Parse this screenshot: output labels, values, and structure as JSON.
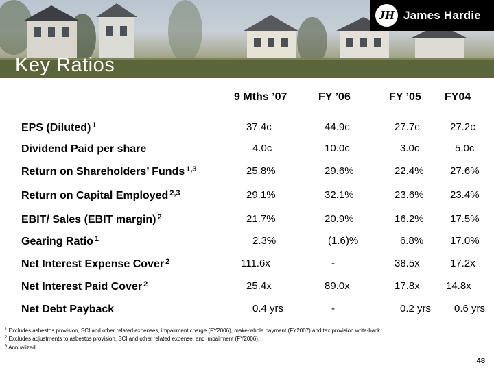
{
  "header": {
    "logo_mark": "JH",
    "logo_text": "James Hardie",
    "title": "Key Ratios"
  },
  "columns": [
    "9 Mths ’07",
    "FY ’06",
    "FY ’05",
    "FY04"
  ],
  "rows": [
    {
      "label": "EPS (Diluted)",
      "sup": "1",
      "values": [
        "37.4c",
        "44.9c",
        "27.7c",
        "27.2c"
      ]
    },
    {
      "label": "Dividend Paid per share",
      "sup": "",
      "values": [
        "4.0c",
        "10.0c",
        "3.0c",
        "5.0c"
      ]
    },
    {
      "label": "Return on Shareholders’ Funds",
      "sup": "1,3",
      "values": [
        "25.8%",
        "29.6%",
        "22.4%",
        "27.6%"
      ]
    },
    {
      "label": "Return on Capital Employed",
      "sup": "2,3",
      "values": [
        "29.1%",
        "32.1%",
        "23.6%",
        "23.4%"
      ]
    },
    {
      "label": "EBIT/ Sales (EBIT margin)",
      "sup": "2",
      "values": [
        "21.7%",
        "20.9%",
        "16.2%",
        "17.5%"
      ]
    },
    {
      "label": "Gearing Ratio",
      "sup": "1",
      "values": [
        "2.3%",
        "(1.6)%",
        "6.8%",
        "17.0%"
      ]
    },
    {
      "label": "Net Interest Expense Cover",
      "sup": "2",
      "values": [
        "111.6x",
        "-",
        "38.5x",
        "17.2x"
      ]
    },
    {
      "label": "Net Interest Paid Cover",
      "sup": "2",
      "values": [
        "25.4x",
        "89.0x",
        "17.8x",
        "14.8x"
      ]
    },
    {
      "label": "Net Debt Payback",
      "sup": "",
      "values": [
        "0.4 yrs",
        "-",
        "0.2 yrs",
        "0.6 yrs"
      ]
    }
  ],
  "footnotes": [
    {
      "mark": "1",
      "text": "Excludes asbestos provision, SCI and other related expenses, impairment charge (FY2006), make-whole payment (FY2007) and tax provision write-back."
    },
    {
      "mark": "2",
      "text": "Excludes adjustments to asbestos provision, SCI and other related expense, and impairment (FY2006)."
    },
    {
      "mark": "3",
      "text": "Annualized"
    }
  ],
  "page_number": "48",
  "colors": {
    "banner_sky": "#c8d0d6",
    "banner_grass": "#5e6a3b",
    "logo_bg": "#000000",
    "title_text": "#ffffff"
  }
}
